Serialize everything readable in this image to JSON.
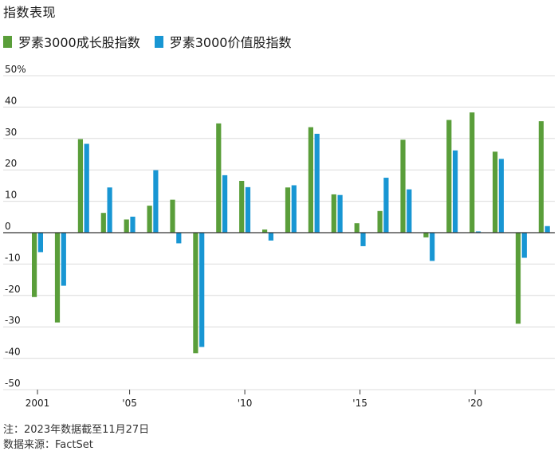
{
  "header": {
    "title": "指数表现"
  },
  "legend": {
    "items": [
      {
        "label": "罗素3000成长股指数",
        "color": "#5a9e3a"
      },
      {
        "label": "罗素3000价值股指数",
        "color": "#1896d3"
      }
    ]
  },
  "footer": {
    "note": "注：2023年数据截至11月27日",
    "source": "数据来源：FactSet"
  },
  "chart_data": {
    "type": "bar",
    "title": "指数表现",
    "years": [
      2001,
      2002,
      2003,
      2004,
      2005,
      2006,
      2007,
      2008,
      2009,
      2010,
      2011,
      2012,
      2013,
      2014,
      2015,
      2016,
      2017,
      2018,
      2019,
      2020,
      2021,
      2022,
      2023
    ],
    "x_tick_labels": [
      {
        "year": 2001,
        "label": "2001"
      },
      {
        "year": 2005,
        "label": "'05"
      },
      {
        "year": 2010,
        "label": "'10"
      },
      {
        "year": 2015,
        "label": "'15"
      },
      {
        "year": 2020,
        "label": "'20"
      }
    ],
    "series": [
      {
        "name": "罗素3000成长股指数",
        "color": "#5a9e3a",
        "values": [
          -20.5,
          -28.6,
          29.8,
          6.3,
          4.2,
          8.6,
          10.5,
          -38.4,
          34.8,
          16.5,
          1.0,
          14.4,
          33.6,
          12.2,
          3.0,
          6.9,
          29.6,
          -1.5,
          35.9,
          38.3,
          25.8,
          -29.0,
          35.5
        ]
      },
      {
        "name": "罗素3000价值股指数",
        "color": "#1896d3",
        "values": [
          -6.2,
          -16.9,
          28.3,
          14.4,
          5.1,
          19.9,
          -3.4,
          -36.4,
          18.3,
          14.5,
          -2.5,
          15.1,
          31.5,
          12.0,
          -4.3,
          17.5,
          13.8,
          -9.0,
          26.2,
          0.4,
          23.5,
          -8.0,
          2.1
        ]
      }
    ],
    "y_ticks": [
      50,
      40,
      30,
      20,
      10,
      0,
      -10,
      -20,
      -30,
      -40,
      -50
    ],
    "y_tick_labels": [
      "50%",
      "40",
      "30",
      "20",
      "10",
      "0",
      "-10",
      "-20",
      "-30",
      "-40",
      "-50"
    ],
    "ylim": [
      -50,
      50
    ],
    "grid": true
  }
}
